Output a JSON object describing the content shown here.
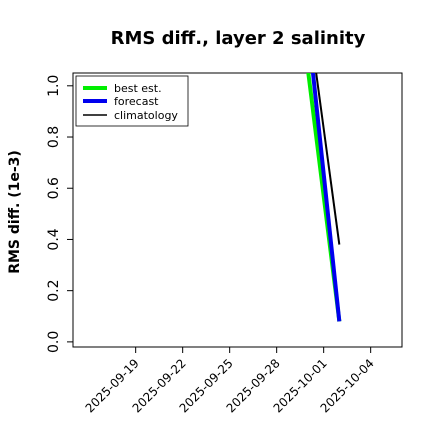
{
  "chart_data": {
    "type": "line",
    "title": "RMS diff., layer 2 salinity",
    "xlabel": "",
    "ylabel": "RMS diff. (1e-3)",
    "xlim": [
      "2025-09-15",
      "2025-10-06"
    ],
    "ylim": [
      -0.02,
      1.05
    ],
    "yticks": [
      "0.0",
      "0.2",
      "0.4",
      "0.6",
      "0.8",
      "1.0"
    ],
    "xticks": [
      {
        "label": "2025-09-19",
        "color": "#000000"
      },
      {
        "label": "2025-09-22",
        "color": "#000000"
      },
      {
        "label": "2025-09-25",
        "color": "#008000"
      },
      {
        "label": "2025-09-28",
        "color": "#000000"
      },
      {
        "label": "2025-10-01",
        "color": "#000000"
      },
      {
        "label": "2025-10-04",
        "color": "#000000"
      }
    ],
    "legend_position": "top-left",
    "series": [
      {
        "name": "best est.",
        "color": "#00ee00",
        "width": 4,
        "x": [
          "2025-09-30",
          "2025-10-02"
        ],
        "y": [
          1.06,
          0.08
        ]
      },
      {
        "name": "forecast",
        "color": "#0000ee",
        "width": 4,
        "x": [
          "2025-09-30.3",
          "2025-10-02"
        ],
        "y": [
          1.06,
          0.08
        ]
      },
      {
        "name": "climatology",
        "color": "#000000",
        "width": 2,
        "x": [
          "2025-09-30.5",
          "2025-10-02"
        ],
        "y": [
          1.06,
          0.38
        ]
      }
    ]
  }
}
